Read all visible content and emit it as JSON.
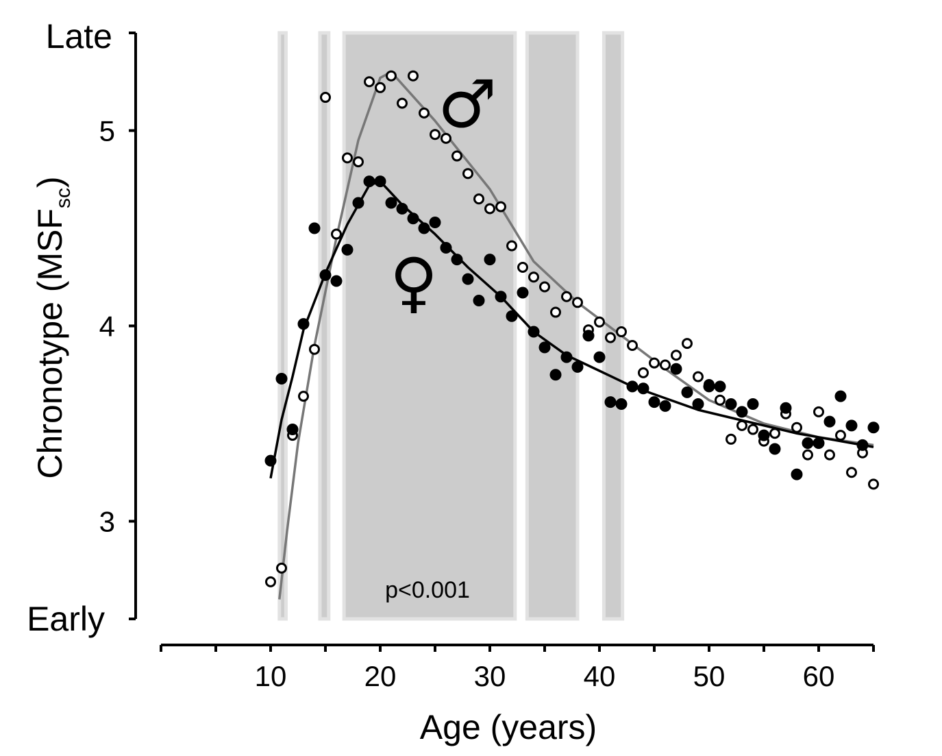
{
  "chart_data": {
    "type": "scatter",
    "xlabel": "Age (years)",
    "ylabel_main": "Chronotype (MSF",
    "ylabel_sub": "sc",
    "ylabel_close": ")",
    "xlim": [
      0,
      65
    ],
    "ylim": [
      2.5,
      5.5
    ],
    "x_ticks_major": [
      10,
      20,
      30,
      40,
      50,
      60
    ],
    "x_ticks_minor": [
      0,
      5,
      15,
      25,
      35,
      45,
      55,
      65
    ],
    "y_ticks": [
      3,
      4,
      5
    ],
    "y_end_labels": {
      "top": "Late",
      "bottom": "Early"
    },
    "annotation": "p<0.001",
    "significance_bands": [
      [
        10.8,
        11.4
      ],
      [
        14.5,
        15.3
      ],
      [
        16.7,
        32.3
      ],
      [
        33.4,
        38.0
      ],
      [
        40.4,
        42.1
      ]
    ],
    "male_symbol": "♂",
    "female_symbol": "♀",
    "series": [
      {
        "symbol": "male",
        "marker": "open-circle",
        "line_color": "#777777",
        "points": [
          [
            10,
            2.69
          ],
          [
            11,
            2.76
          ],
          [
            12,
            3.44
          ],
          [
            13,
            3.64
          ],
          [
            14,
            3.88
          ],
          [
            15,
            5.17
          ],
          [
            16,
            4.47
          ],
          [
            17,
            4.86
          ],
          [
            18,
            4.84
          ],
          [
            19,
            5.25
          ],
          [
            20,
            5.22
          ],
          [
            21,
            5.28
          ],
          [
            22,
            5.14
          ],
          [
            23,
            5.28
          ],
          [
            24,
            5.09
          ],
          [
            25,
            4.98
          ],
          [
            26,
            4.96
          ],
          [
            27,
            4.87
          ],
          [
            28,
            4.78
          ],
          [
            29,
            4.65
          ],
          [
            30,
            4.6
          ],
          [
            31,
            4.61
          ],
          [
            32,
            4.41
          ],
          [
            33,
            4.3
          ],
          [
            34,
            4.25
          ],
          [
            35,
            4.2
          ],
          [
            36,
            4.07
          ],
          [
            37,
            4.15
          ],
          [
            38,
            4.12
          ],
          [
            39,
            3.98
          ],
          [
            40,
            4.02
          ],
          [
            41,
            3.94
          ],
          [
            42,
            3.97
          ],
          [
            43,
            3.9
          ],
          [
            44,
            3.76
          ],
          [
            45,
            3.81
          ],
          [
            46,
            3.8
          ],
          [
            47,
            3.85
          ],
          [
            48,
            3.91
          ],
          [
            49,
            3.74
          ],
          [
            50,
            3.7
          ],
          [
            51,
            3.62
          ],
          [
            52,
            3.42
          ],
          [
            53,
            3.49
          ],
          [
            54,
            3.47
          ],
          [
            55,
            3.41
          ],
          [
            56,
            3.45
          ],
          [
            57,
            3.55
          ],
          [
            58,
            3.48
          ],
          [
            59,
            3.34
          ],
          [
            60,
            3.56
          ],
          [
            61,
            3.34
          ],
          [
            62,
            3.44
          ],
          [
            63,
            3.25
          ],
          [
            64,
            3.35
          ],
          [
            65,
            3.19
          ]
        ],
        "curve": [
          [
            10.8,
            2.6
          ],
          [
            11.5,
            2.95
          ],
          [
            12.5,
            3.4
          ],
          [
            14,
            3.9
          ],
          [
            16,
            4.45
          ],
          [
            18,
            4.95
          ],
          [
            20,
            5.27
          ],
          [
            21,
            5.3
          ],
          [
            25,
            5.05
          ],
          [
            30,
            4.7
          ],
          [
            34,
            4.33
          ],
          [
            38,
            4.12
          ],
          [
            42,
            3.95
          ],
          [
            46,
            3.78
          ],
          [
            50,
            3.62
          ],
          [
            55,
            3.5
          ],
          [
            60,
            3.43
          ],
          [
            65,
            3.39
          ]
        ]
      },
      {
        "symbol": "female",
        "marker": "filled-circle",
        "line_color": "#000000",
        "points": [
          [
            10,
            3.31
          ],
          [
            11,
            3.73
          ],
          [
            12,
            3.47
          ],
          [
            13,
            4.01
          ],
          [
            14,
            4.5
          ],
          [
            15,
            4.26
          ],
          [
            16,
            4.23
          ],
          [
            17,
            4.39
          ],
          [
            18,
            4.63
          ],
          [
            19,
            4.74
          ],
          [
            20,
            4.74
          ],
          [
            21,
            4.63
          ],
          [
            22,
            4.6
          ],
          [
            23,
            4.55
          ],
          [
            24,
            4.5
          ],
          [
            25,
            4.53
          ],
          [
            26,
            4.4
          ],
          [
            27,
            4.34
          ],
          [
            28,
            4.24
          ],
          [
            29,
            4.13
          ],
          [
            30,
            4.34
          ],
          [
            31,
            4.15
          ],
          [
            32,
            4.05
          ],
          [
            33,
            4.17
          ],
          [
            34,
            3.97
          ],
          [
            35,
            3.89
          ],
          [
            36,
            3.75
          ],
          [
            37,
            3.84
          ],
          [
            38,
            3.79
          ],
          [
            39,
            3.95
          ],
          [
            40,
            3.84
          ],
          [
            41,
            3.61
          ],
          [
            42,
            3.6
          ],
          [
            43,
            3.69
          ],
          [
            44,
            3.68
          ],
          [
            45,
            3.61
          ],
          [
            46,
            3.59
          ],
          [
            47,
            3.78
          ],
          [
            48,
            3.66
          ],
          [
            49,
            3.6
          ],
          [
            50,
            3.69
          ],
          [
            51,
            3.69
          ],
          [
            52,
            3.6
          ],
          [
            53,
            3.56
          ],
          [
            54,
            3.6
          ],
          [
            55,
            3.44
          ],
          [
            56,
            3.37
          ],
          [
            57,
            3.58
          ],
          [
            58,
            3.24
          ],
          [
            59,
            3.4
          ],
          [
            60,
            3.4
          ],
          [
            61,
            3.51
          ],
          [
            62,
            3.64
          ],
          [
            63,
            3.49
          ],
          [
            64,
            3.39
          ],
          [
            65,
            3.48
          ]
        ],
        "curve": [
          [
            10,
            3.22
          ],
          [
            11,
            3.52
          ],
          [
            12,
            3.74
          ],
          [
            13,
            3.98
          ],
          [
            15,
            4.27
          ],
          [
            17,
            4.52
          ],
          [
            19,
            4.72
          ],
          [
            20,
            4.74
          ],
          [
            22,
            4.62
          ],
          [
            25,
            4.47
          ],
          [
            28,
            4.3
          ],
          [
            31,
            4.15
          ],
          [
            34,
            3.97
          ],
          [
            37,
            3.85
          ],
          [
            40,
            3.77
          ],
          [
            43,
            3.69
          ],
          [
            46,
            3.63
          ],
          [
            49,
            3.57
          ],
          [
            52,
            3.53
          ],
          [
            55,
            3.49
          ],
          [
            58,
            3.45
          ],
          [
            61,
            3.42
          ],
          [
            65,
            3.38
          ]
        ]
      }
    ]
  }
}
